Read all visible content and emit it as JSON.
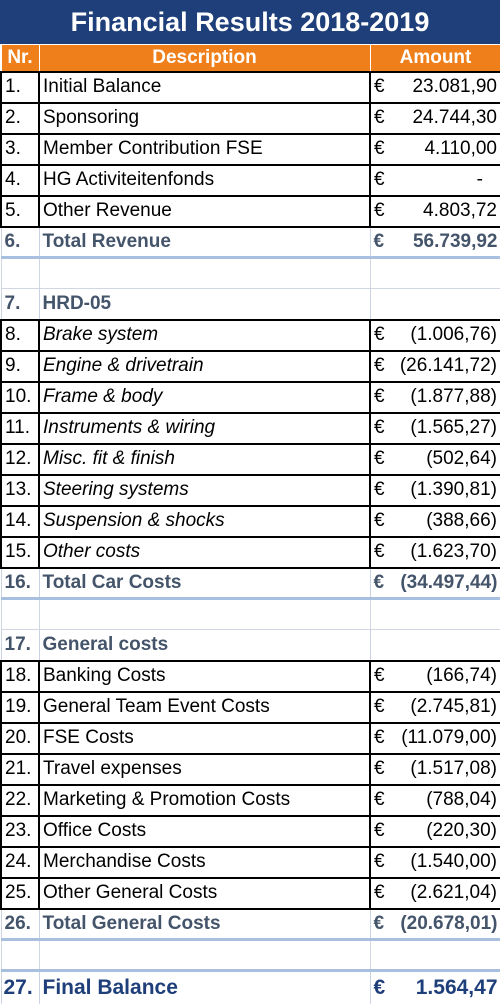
{
  "title": "Financial Results 2018-2019",
  "headers": {
    "nr": "Nr.",
    "description": "Description",
    "amount": "Amount"
  },
  "currency": "€",
  "colors": {
    "title_bg": "#1f3f7a",
    "header_bg": "#ef7f1a",
    "section_text": "#44546a"
  },
  "rows": [
    {
      "nr": "1.",
      "desc": "Initial Balance",
      "amount": "23.081,90"
    },
    {
      "nr": "2.",
      "desc": "Sponsoring",
      "amount": "24.744,30"
    },
    {
      "nr": "3.",
      "desc": "Member Contribution FSE",
      "amount": "4.110,00"
    },
    {
      "nr": "4.",
      "desc": "HG Activiteitenfonds",
      "amount": "-"
    },
    {
      "nr": "5.",
      "desc": "Other Revenue",
      "amount": "4.803,72"
    },
    {
      "nr": "6.",
      "desc": "Total Revenue",
      "amount": "56.739,92"
    },
    {
      "nr": "7.",
      "desc": "HRD-05"
    },
    {
      "nr": "8.",
      "desc": "Brake system",
      "amount": "(1.006,76)"
    },
    {
      "nr": "9.",
      "desc": "Engine & drivetrain",
      "amount": "(26.141,72)"
    },
    {
      "nr": "10.",
      "desc": "Frame & body",
      "amount": "(1.877,88)"
    },
    {
      "nr": "11.",
      "desc": "Instruments & wiring",
      "amount": "(1.565,27)"
    },
    {
      "nr": "12.",
      "desc": "Misc. fit & finish",
      "amount": "(502,64)"
    },
    {
      "nr": "13.",
      "desc": "Steering systems",
      "amount": "(1.390,81)"
    },
    {
      "nr": "14.",
      "desc": "Suspension & shocks",
      "amount": "(388,66)"
    },
    {
      "nr": "15.",
      "desc": "Other costs",
      "amount": "(1.623,70)"
    },
    {
      "nr": "16.",
      "desc": "Total Car Costs",
      "amount": "(34.497,44)"
    },
    {
      "nr": "17.",
      "desc": "General costs"
    },
    {
      "nr": "18.",
      "desc": "Banking Costs",
      "amount": "(166,74)"
    },
    {
      "nr": "19.",
      "desc": "General Team Event Costs",
      "amount": "(2.745,81)"
    },
    {
      "nr": "20.",
      "desc": "FSE Costs",
      "amount": "(11.079,00)"
    },
    {
      "nr": "21.",
      "desc": "Travel expenses",
      "amount": "(1.517,08)"
    },
    {
      "nr": "22.",
      "desc": "Marketing & Promotion Costs",
      "amount": "(788,04)"
    },
    {
      "nr": "23.",
      "desc": "Office Costs",
      "amount": "(220,30)"
    },
    {
      "nr": "24.",
      "desc": "Merchandise Costs",
      "amount": "(1.540,00)"
    },
    {
      "nr": "25.",
      "desc": "Other General Costs",
      "amount": "(2.621,04)"
    },
    {
      "nr": "26.",
      "desc": "Total General Costs",
      "amount": "(20.678,01)"
    },
    {
      "nr": "27.",
      "desc": "Final Balance",
      "amount": "1.564,47"
    }
  ]
}
